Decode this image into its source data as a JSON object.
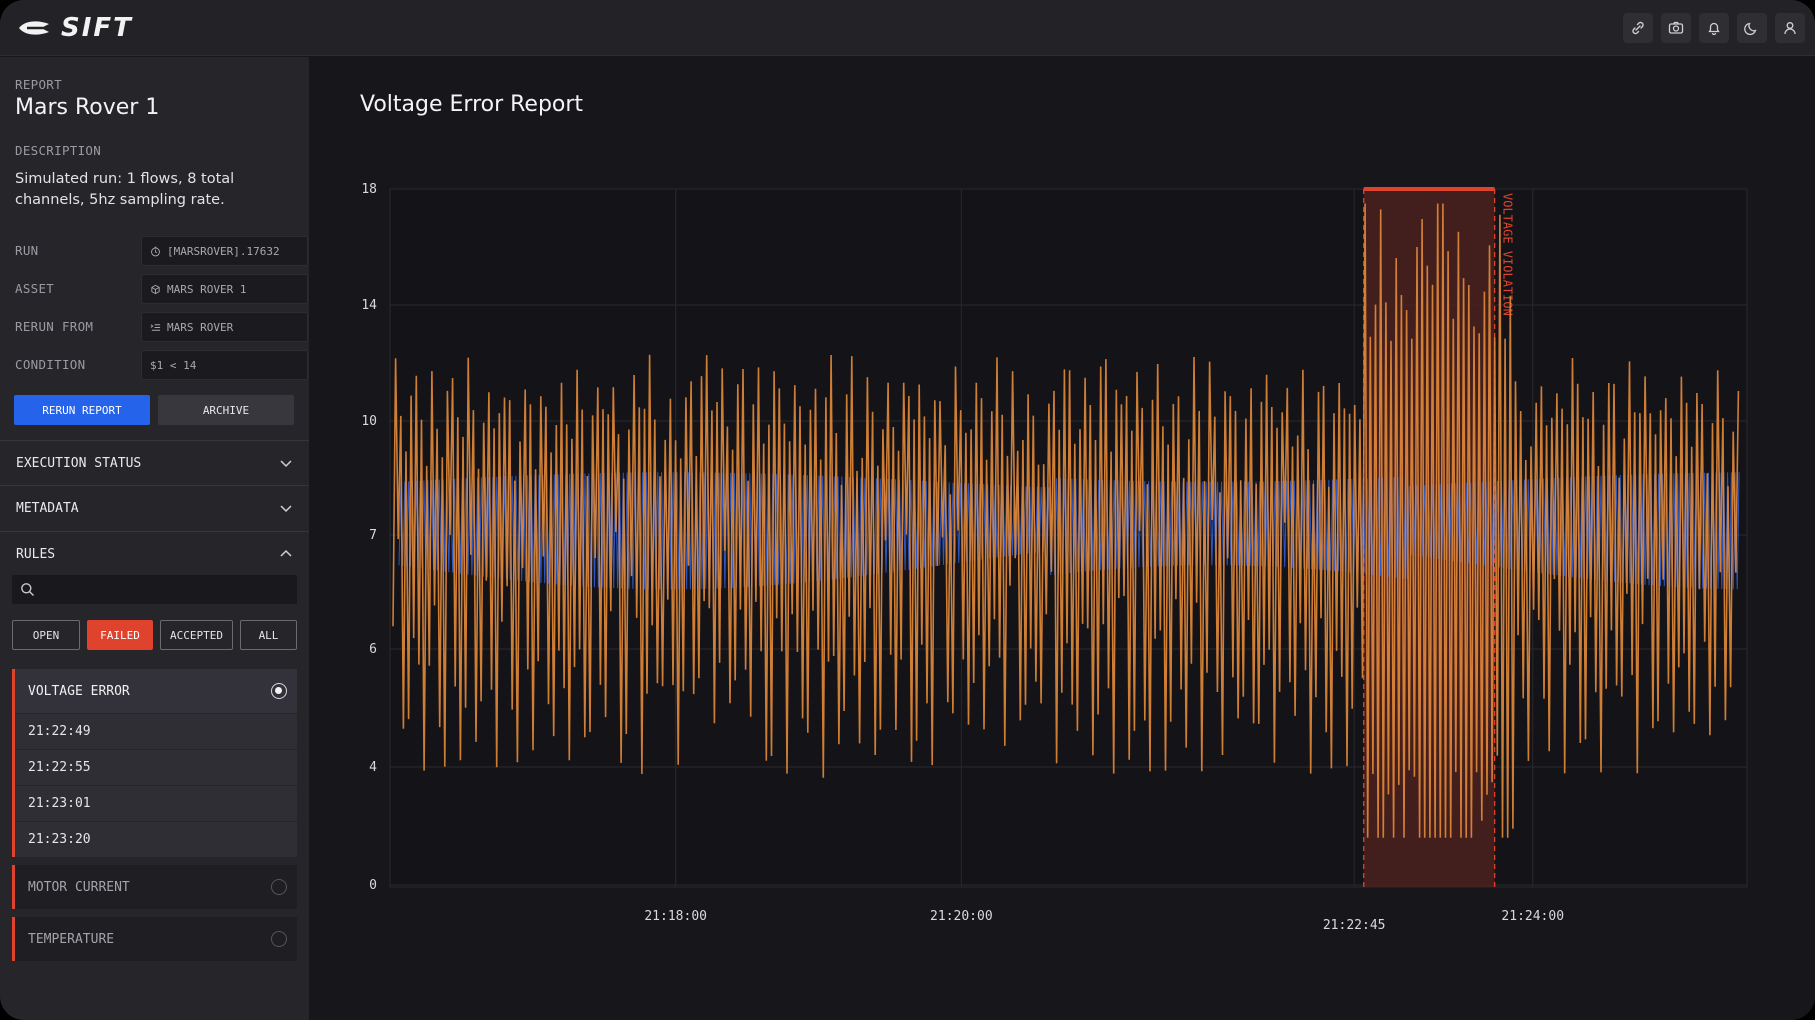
{
  "app": {
    "logo_text": "SIFT"
  },
  "header": {
    "actions": [
      {
        "name": "link-icon"
      },
      {
        "name": "camera-icon"
      },
      {
        "name": "bell-icon"
      },
      {
        "name": "moon-icon"
      },
      {
        "name": "user-icon"
      }
    ]
  },
  "sidebar": {
    "report_label": "REPORT",
    "report_title": "Mars Rover 1",
    "description_label": "DESCRIPTION",
    "description": "Simulated run: 1 flows, 8 total channels, 5hz sampling rate.",
    "fields": [
      {
        "label": "RUN",
        "value": "[MARSROVER].17632",
        "icon": "clock-icon"
      },
      {
        "label": "ASSET",
        "value": "MARS ROVER 1",
        "icon": "cube-icon"
      },
      {
        "label": "RERUN FROM",
        "value": "MARS ROVER",
        "icon": "list-icon"
      },
      {
        "label": "CONDITION",
        "value": "$1 < 14",
        "icon": ""
      }
    ],
    "buttons": {
      "rerun": "RERUN REPORT",
      "archive": "ARCHIVE"
    },
    "sections": {
      "execution_status": "EXECUTION STATUS",
      "metadata": "METADATA",
      "rules": "RULES"
    },
    "search": {
      "placeholder": "",
      "value": ""
    },
    "filters": [
      {
        "label": "OPEN",
        "active": false
      },
      {
        "label": "FAILED",
        "active": true
      },
      {
        "label": "ACCEPTED",
        "active": false
      },
      {
        "label": "ALL",
        "active": false
      }
    ],
    "rules": [
      {
        "name": "VOLTAGE ERROR",
        "selected": true,
        "items": [
          "21:22:49",
          "21:22:55",
          "21:23:01",
          "21:23:20"
        ]
      },
      {
        "name": "MOTOR CURRENT",
        "selected": false,
        "items": []
      },
      {
        "name": "TEMPERATURE",
        "selected": false,
        "items": []
      }
    ]
  },
  "main": {
    "title": "Voltage Error Report"
  },
  "colors": {
    "accent_blue": "#2563eb",
    "failed_red": "#e0432d",
    "series_orange": "#e0883a",
    "series_blue": "#2f5fd6",
    "violation_fill": "#5a241f"
  },
  "chart_data": {
    "type": "line",
    "title": "",
    "xlabel": "",
    "ylabel": "",
    "y_ticks": [
      0,
      4,
      6,
      7,
      10,
      14,
      18
    ],
    "x_ticks": [
      "21:18:00",
      "21:20:00",
      "21:22:45",
      "21:24:00"
    ],
    "x_range": [
      "21:16:00",
      "21:25:30"
    ],
    "grid": true,
    "annotation": {
      "label": "VOLTAGE VIOLATION",
      "start": "21:22:49",
      "end": "21:23:44"
    },
    "series": [
      {
        "color": "#e0883a",
        "description_points": "oscillating roughly 6–11, spiking up to ~17.5 and down to ~2 inside the violation window"
      },
      {
        "color": "#2f5fd6",
        "description_points": "dense oscillation in band ~6.5–8.5 centered at ~7.5"
      }
    ]
  }
}
